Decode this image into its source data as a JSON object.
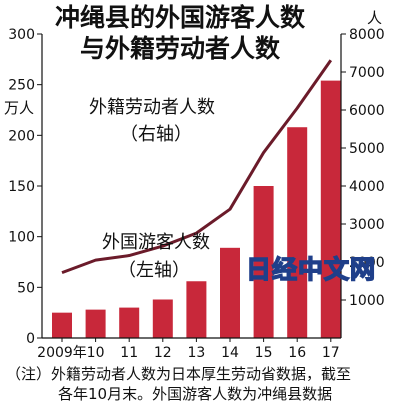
{
  "chart_data": {
    "type": "bar+line",
    "title": "冲绳县的外国游客人数",
    "subtitle": "与外籍劳动者人数",
    "categories": [
      "2009年",
      "10",
      "11",
      "12",
      "13",
      "14",
      "15",
      "16",
      "17"
    ],
    "ylabel_left": "万人",
    "ylabel_right": "人",
    "ylim_left": [
      0,
      300
    ],
    "ylim_right": [
      0,
      8000
    ],
    "left_ticks": [
      0,
      50,
      100,
      150,
      200,
      250,
      300
    ],
    "right_ticks": [
      1000,
      2000,
      3000,
      4000,
      5000,
      6000,
      7000,
      8000
    ],
    "grid": false,
    "series": [
      {
        "name": "外国游客人数（左轴）",
        "type": "bar",
        "axis": "left",
        "color": "#c8283a",
        "values": [
          25,
          28,
          30,
          38,
          56,
          89,
          150,
          208,
          254
        ]
      },
      {
        "name": "外籍劳动者人数（右轴）",
        "type": "line",
        "axis": "right",
        "color": "#6b1b2a",
        "values": [
          1720,
          2050,
          2170,
          2420,
          2760,
          3390,
          4880,
          6050,
          7310
        ]
      }
    ],
    "annotations": {
      "line_label_1": "外籍劳动者人数",
      "line_label_2": "（右轴）",
      "bar_label_1": "外国游客人数",
      "bar_label_2": "（左轴）"
    }
  },
  "notes": {
    "line1": "（注）外籍劳动者人数为日本厚生劳动省数据，截至",
    "line2": "各年10月末。外国游客人数为冲绳县数据"
  },
  "watermark": "日经中文网"
}
